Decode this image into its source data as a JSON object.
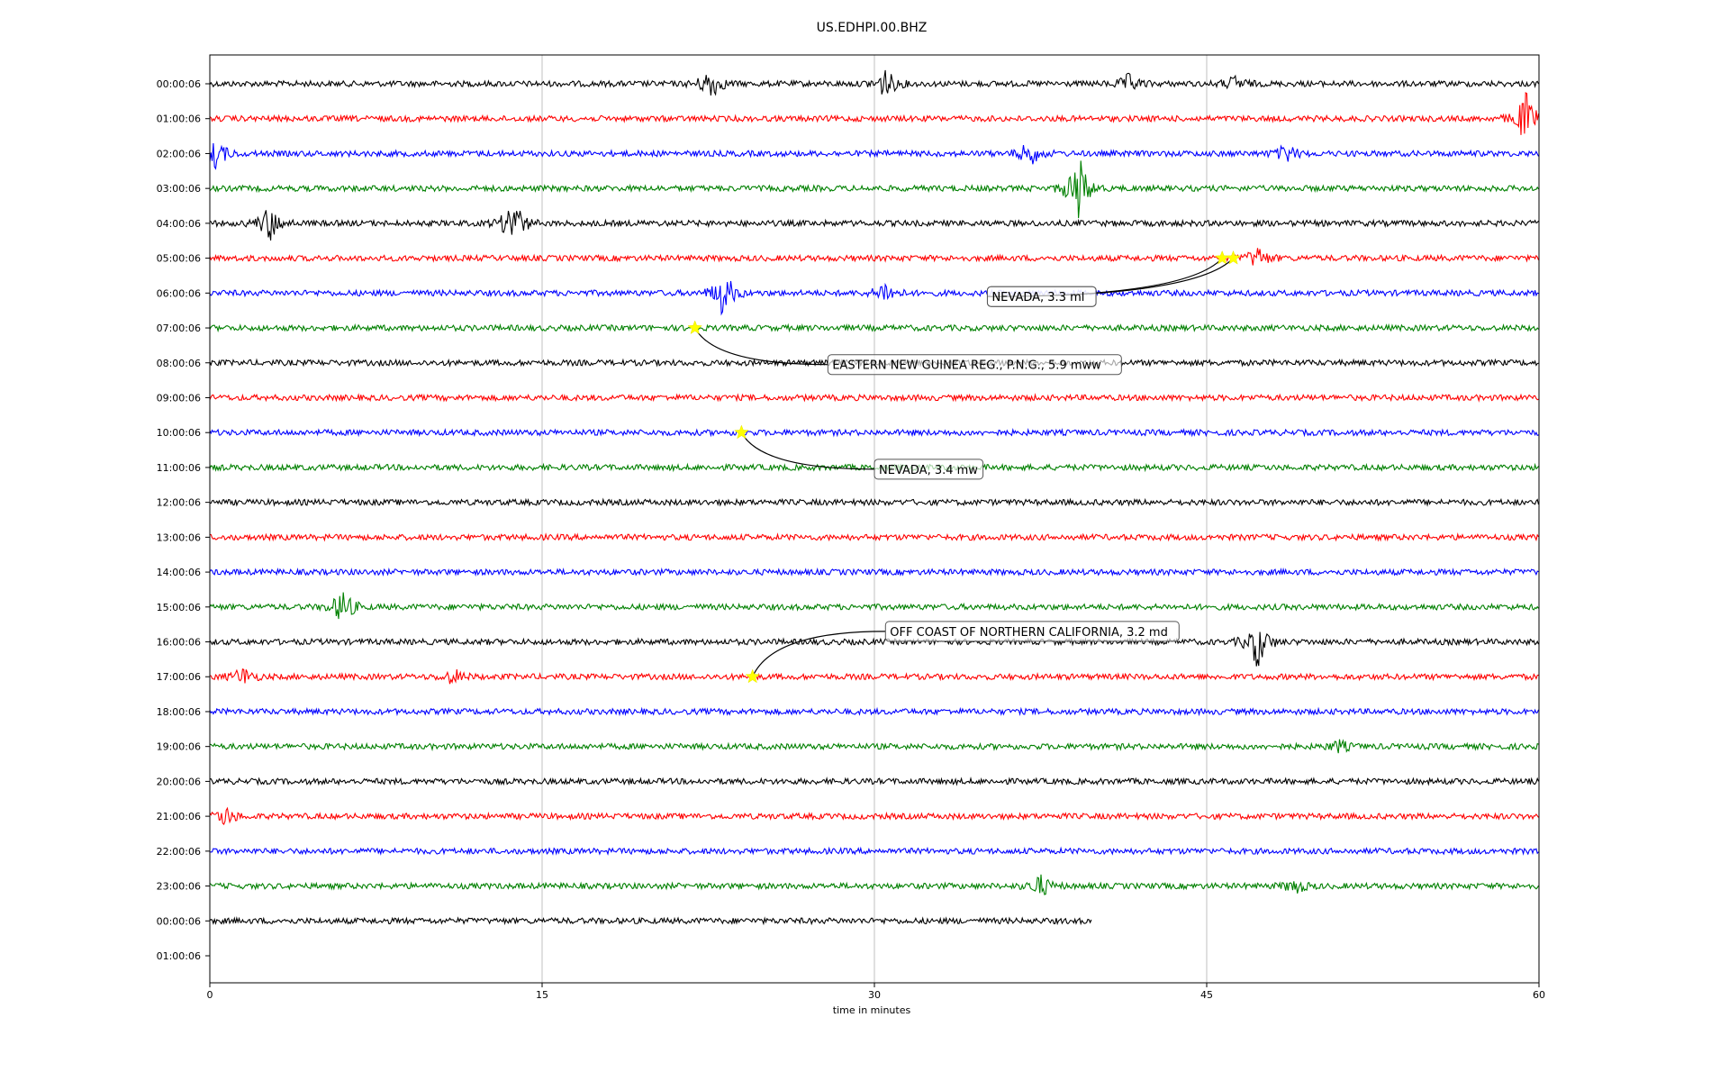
{
  "chart_data": {
    "type": "line",
    "title": "US.EDHPI.00.BHZ",
    "xlabel": "time in minutes",
    "ylabel": "",
    "xlim": [
      0,
      60
    ],
    "x_ticks": [
      0,
      15,
      30,
      45,
      60
    ],
    "x_tick_labels": [
      "0",
      "15",
      "30",
      "45",
      "60"
    ],
    "grid": "vertical",
    "trace_colors": [
      "#000000",
      "#ff0000",
      "#0000ff",
      "#008000"
    ],
    "rows": [
      {
        "label": "00:00:06",
        "end_minute": 60
      },
      {
        "label": "01:00:06",
        "end_minute": 60
      },
      {
        "label": "02:00:06",
        "end_minute": 60
      },
      {
        "label": "03:00:06",
        "end_minute": 60
      },
      {
        "label": "04:00:06",
        "end_minute": 60
      },
      {
        "label": "05:00:06",
        "end_minute": 60
      },
      {
        "label": "06:00:06",
        "end_minute": 60
      },
      {
        "label": "07:00:06",
        "end_minute": 60
      },
      {
        "label": "08:00:06",
        "end_minute": 60
      },
      {
        "label": "09:00:06",
        "end_minute": 60
      },
      {
        "label": "10:00:06",
        "end_minute": 60
      },
      {
        "label": "11:00:06",
        "end_minute": 60
      },
      {
        "label": "12:00:06",
        "end_minute": 60
      },
      {
        "label": "13:00:06",
        "end_minute": 60
      },
      {
        "label": "14:00:06",
        "end_minute": 60
      },
      {
        "label": "15:00:06",
        "end_minute": 60
      },
      {
        "label": "16:00:06",
        "end_minute": 60
      },
      {
        "label": "17:00:06",
        "end_minute": 60
      },
      {
        "label": "18:00:06",
        "end_minute": 60
      },
      {
        "label": "19:00:06",
        "end_minute": 60
      },
      {
        "label": "20:00:06",
        "end_minute": 60
      },
      {
        "label": "21:00:06",
        "end_minute": 60
      },
      {
        "label": "22:00:06",
        "end_minute": 60
      },
      {
        "label": "23:00:06",
        "end_minute": 60
      },
      {
        "label": "00:00:06",
        "end_minute": 39.8
      },
      {
        "label": "01:00:06",
        "end_minute": 0
      }
    ],
    "bursts": [
      {
        "row": 0,
        "minute": 22.6,
        "amp": 0.9
      },
      {
        "row": 0,
        "minute": 30.5,
        "amp": 0.8
      },
      {
        "row": 0,
        "minute": 41.5,
        "amp": 0.5
      },
      {
        "row": 0,
        "minute": 46.3,
        "amp": 0.4
      },
      {
        "row": 1,
        "minute": 59.4,
        "amp": 1.4
      },
      {
        "row": 2,
        "minute": 0.3,
        "amp": 0.8
      },
      {
        "row": 2,
        "minute": 37.0,
        "amp": 0.7
      },
      {
        "row": 2,
        "minute": 48.6,
        "amp": 0.5
      },
      {
        "row": 3,
        "minute": 39.2,
        "amp": 1.9
      },
      {
        "row": 4,
        "minute": 2.7,
        "amp": 1.0
      },
      {
        "row": 4,
        "minute": 13.7,
        "amp": 1.4
      },
      {
        "row": 5,
        "minute": 47.3,
        "amp": 0.6
      },
      {
        "row": 6,
        "minute": 23.2,
        "amp": 1.3
      },
      {
        "row": 6,
        "minute": 30.5,
        "amp": 0.6
      },
      {
        "row": 15,
        "minute": 6.0,
        "amp": 1.0
      },
      {
        "row": 16,
        "minute": 47.3,
        "amp": 1.4
      },
      {
        "row": 17,
        "minute": 1.5,
        "amp": 0.5
      },
      {
        "row": 17,
        "minute": 11.0,
        "amp": 0.4
      },
      {
        "row": 19,
        "minute": 51.0,
        "amp": 0.3
      },
      {
        "row": 21,
        "minute": 0.7,
        "amp": 0.5
      },
      {
        "row": 23,
        "minute": 37.5,
        "amp": 0.6
      },
      {
        "row": 23,
        "minute": 49.0,
        "amp": 0.4
      }
    ],
    "events": [
      {
        "label": "NEVADA, 3.3 ml",
        "row": 5,
        "minute": 45.7,
        "box_row": 6.1,
        "box_minute": 35.1
      },
      {
        "label": "NEVADA, 3.3 ml",
        "row": 5,
        "minute": 46.2,
        "box_row": 6.1,
        "box_minute": 35.1
      },
      {
        "label": "EASTERN NEW GUINEA REG., P.N.G., 5.9 mww",
        "row": 7,
        "minute": 21.9,
        "box_row": 8.05,
        "box_minute": 27.9
      },
      {
        "label": "NEVADA, 3.4 mw",
        "row": 10,
        "minute": 24.0,
        "box_row": 11.05,
        "box_minute": 30.0
      },
      {
        "label": "OFF COAST OF NORTHERN CALIFORNIA, 3.2 md",
        "row": 17,
        "minute": 24.5,
        "box_row": 15.7,
        "box_minute": 30.5
      }
    ]
  }
}
